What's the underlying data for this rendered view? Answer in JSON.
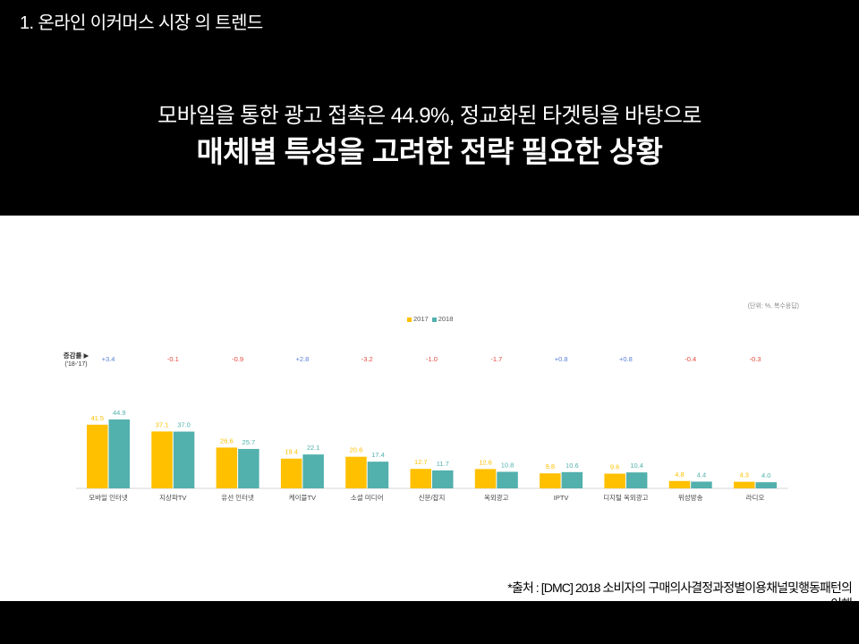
{
  "header": {
    "section_title": "1. 온라인 이커머스 시장 의 트렌드",
    "headline_line1": "모바일을 통한 광고 접촉은 44.9%, 정교화된 타겟팅을 바탕으로",
    "headline_line2": "매체별 특성을 고려한 전략 필요한 상황"
  },
  "chart_data": {
    "type": "bar",
    "unit_note": "(단위: %, 복수응답)",
    "categories": [
      "모바일 인터넷",
      "지상파TV",
      "유선 인터넷",
      "케이블TV",
      "소셜 미디어",
      "신문/잡지",
      "옥외광고",
      "IPTV",
      "디지털 옥외광고",
      "위성방송",
      "라디오"
    ],
    "series": [
      {
        "name": "2017",
        "color": "#FFC000",
        "values": [
          41.5,
          37.1,
          26.6,
          19.4,
          20.6,
          12.7,
          12.6,
          9.8,
          9.6,
          4.8,
          4.3
        ]
      },
      {
        "name": "2018",
        "color": "#52B0AD",
        "values": [
          44.9,
          37.0,
          25.7,
          22.1,
          17.4,
          11.7,
          10.8,
          10.6,
          10.4,
          4.4,
          4.0
        ]
      }
    ],
    "change_row": {
      "title": "증감률 ▶",
      "subtitle": "('18-'17)",
      "values": [
        "+3.4",
        "-0.1",
        "-0.9",
        "+2.8",
        "-3.2",
        "-1.0",
        "-1.7",
        "+0.8",
        "+0.8",
        "-0.4",
        "-0.3"
      ],
      "increase_color": "#5A80D5",
      "decrease_color": "#E2483D"
    },
    "legend": "top-center",
    "grid": false
  },
  "footnote": {
    "line1": "*출처 : [DMC] 2018 소비자의 구매의사결정과정별이용채널및행동패턴의",
    "line2": "이해"
  }
}
